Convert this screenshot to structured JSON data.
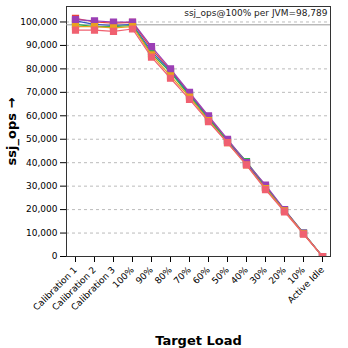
{
  "chart_data": {
    "type": "line",
    "x_label": "Target Load",
    "y_label": "ssj_ops",
    "categories": [
      "Calibration 1",
      "Calibration 2",
      "Calibration 3",
      "100%",
      "90%",
      "80%",
      "70%",
      "60%",
      "50%",
      "40%",
      "30%",
      "20%",
      "10%",
      "Active Idle"
    ],
    "series": [
      {
        "color": "#e8413c",
        "values": [
          101500,
          100000,
          99500,
          99800,
          88500,
          79500,
          69500,
          59500,
          49500,
          39500,
          29500,
          19500,
          9800,
          0
        ]
      },
      {
        "color": "#3a56c8",
        "values": [
          100500,
          99000,
          98500,
          99000,
          87500,
          79000,
          69000,
          59000,
          49000,
          39500,
          29500,
          19800,
          9900,
          0
        ]
      },
      {
        "color": "#2fb34a",
        "values": [
          99000,
          98000,
          98000,
          98500,
          86500,
          78500,
          68500,
          58500,
          49500,
          40500,
          30000,
          20000,
          10000,
          0
        ]
      },
      {
        "color": "#9b3fb5",
        "values": [
          101000,
          100500,
          100000,
          100000,
          89500,
          80000,
          70000,
          60000,
          50000,
          40000,
          30500,
          20000,
          10000,
          0
        ]
      },
      {
        "color": "#e8a020",
        "values": [
          98000,
          98000,
          97500,
          98000,
          86000,
          77000,
          68000,
          58000,
          48500,
          39000,
          29000,
          19500,
          9700,
          0
        ]
      },
      {
        "color": "#f06070",
        "values": [
          96500,
          96500,
          96000,
          97000,
          85000,
          76000,
          67000,
          57500,
          48500,
          39000,
          28500,
          19000,
          9500,
          0
        ]
      }
    ],
    "ylim": [
      0,
      106600
    ],
    "yticks": [
      0,
      {
        "value": 10000,
        "label": "10,000"
      },
      {
        "value": 20000,
        "label": "20,000"
      },
      {
        "value": 30000,
        "label": "30,000"
      },
      {
        "value": 40000,
        "label": "40,000"
      },
      {
        "value": 50000,
        "label": "50,000"
      },
      {
        "value": 60000,
        "label": "60,000"
      },
      {
        "value": 70000,
        "label": "70,000"
      },
      {
        "value": 80000,
        "label": "80,000"
      },
      {
        "value": 90000,
        "label": "90,000"
      },
      {
        "value": 100000,
        "label": "100,000"
      }
    ],
    "grid": true,
    "marker": "square",
    "annotations": [
      {
        "text": "ssj_ops@100% per JVM=98,789",
        "y": 98789
      }
    ]
  }
}
